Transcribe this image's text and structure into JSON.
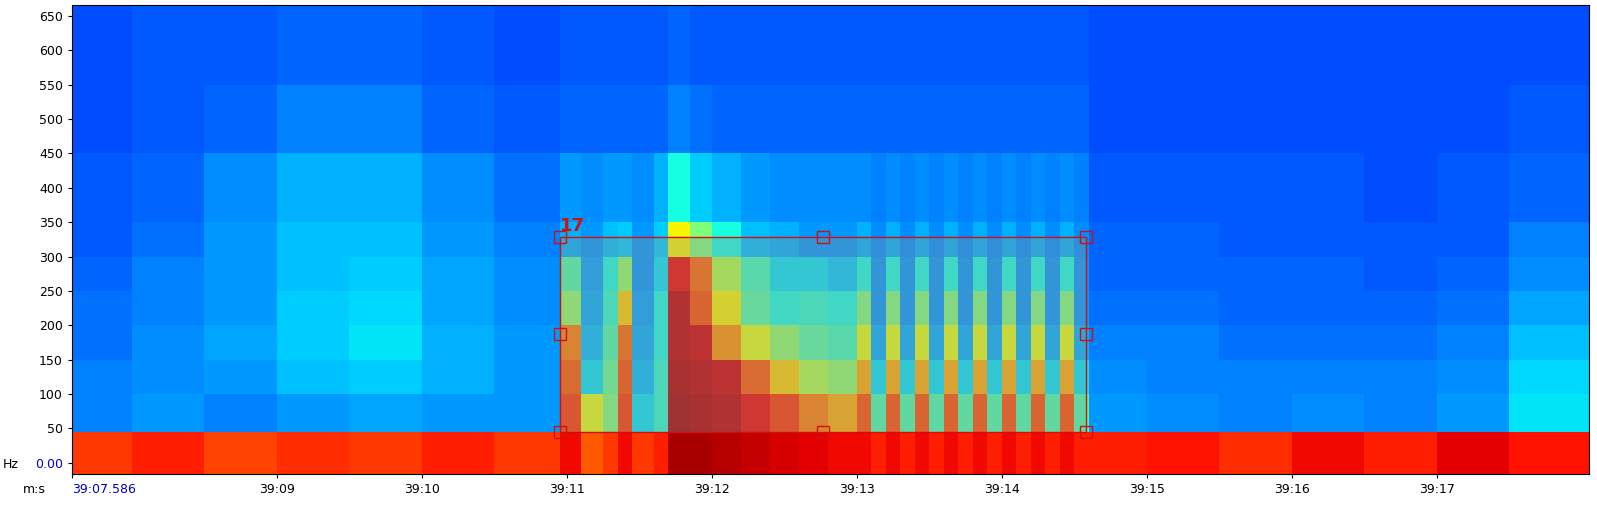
{
  "chart_data": {
    "type": "heatmap",
    "x_label": "m:s",
    "y_label": "Hz",
    "xlim": [
      7.586,
      18.05
    ],
    "ylim": [
      -16,
      666
    ],
    "xticks": [
      {
        "value": 7.586,
        "label": "39:07.586"
      },
      {
        "value": 9,
        "label": "39:09"
      },
      {
        "value": 10,
        "label": "39:10"
      },
      {
        "value": 11,
        "label": "39:11"
      },
      {
        "value": 12,
        "label": "39:12"
      },
      {
        "value": 13,
        "label": "39:13"
      },
      {
        "value": 14,
        "label": "39:14"
      },
      {
        "value": 15,
        "label": "39:15"
      },
      {
        "value": 16,
        "label": "39:16"
      },
      {
        "value": 17,
        "label": "39:17"
      }
    ],
    "yticks": [
      {
        "value": 0,
        "label": "0.00"
      },
      50,
      100,
      150,
      200,
      250,
      300,
      350,
      400,
      450,
      500,
      550,
      600,
      650
    ],
    "x_edges": [
      7.586,
      8.0,
      8.5,
      9.0,
      9.5,
      10.0,
      10.5,
      10.95,
      11.1,
      11.25,
      11.35,
      11.45,
      11.6,
      11.7,
      11.85,
      12.0,
      12.2,
      12.4,
      12.6,
      12.8,
      13.0,
      13.1,
      13.2,
      13.3,
      13.4,
      13.5,
      13.6,
      13.7,
      13.8,
      13.9,
      14.0,
      14.1,
      14.2,
      14.3,
      14.4,
      14.5,
      14.6,
      15.0,
      15.5,
      16.0,
      16.5,
      17.0,
      17.5,
      18.05
    ],
    "y_edges": [
      -16,
      45,
      100,
      150,
      200,
      250,
      300,
      350,
      450,
      550,
      666
    ],
    "zlim": [
      20,
      100
    ],
    "cells": [
      [
        88,
        90,
        87,
        89,
        88,
        90,
        88,
        92,
        85,
        88,
        92,
        88,
        90,
        97,
        97,
        96,
        95,
        94,
        93,
        92,
        92,
        90,
        92,
        90,
        92,
        90,
        92,
        90,
        92,
        90,
        92,
        90,
        92,
        90,
        92,
        90,
        90,
        91,
        89,
        92,
        90,
        93,
        91
      ],
      [
        40,
        42,
        40,
        42,
        43,
        42,
        42,
        88,
        70,
        60,
        88,
        48,
        52,
        97,
        96,
        95,
        92,
        88,
        82,
        78,
        86,
        55,
        86,
        55,
        86,
        55,
        86,
        55,
        86,
        55,
        86,
        55,
        86,
        55,
        86,
        55,
        42,
        41,
        40,
        41,
        40,
        42,
        48
      ],
      [
        40,
        41,
        42,
        45,
        46,
        44,
        42,
        85,
        48,
        58,
        86,
        45,
        52,
        96,
        95,
        94,
        85,
        75,
        65,
        62,
        78,
        48,
        78,
        48,
        78,
        48,
        78,
        48,
        78,
        48,
        78,
        48,
        78,
        48,
        78,
        48,
        41,
        40,
        40,
        40,
        40,
        41,
        47
      ],
      [
        39,
        41,
        43,
        46,
        48,
        44,
        42,
        82,
        45,
        55,
        84,
        44,
        50,
        95,
        94,
        80,
        70,
        62,
        56,
        54,
        70,
        44,
        70,
        44,
        70,
        44,
        70,
        44,
        70,
        44,
        70,
        44,
        70,
        44,
        70,
        44,
        40,
        40,
        39,
        39,
        39,
        40,
        45
      ],
      [
        39,
        40,
        42,
        46,
        47,
        43,
        41,
        62,
        44,
        52,
        75,
        43,
        50,
        95,
        86,
        72,
        56,
        50,
        52,
        50,
        60,
        42,
        60,
        42,
        60,
        42,
        60,
        42,
        60,
        42,
        60,
        42,
        60,
        42,
        60,
        42,
        39,
        39,
        38,
        38,
        38,
        39,
        43
      ],
      [
        38,
        40,
        42,
        45,
        46,
        43,
        41,
        55,
        43,
        50,
        62,
        42,
        48,
        92,
        84,
        65,
        54,
        48,
        48,
        46,
        50,
        42,
        50,
        42,
        50,
        42,
        50,
        42,
        50,
        42,
        50,
        42,
        50,
        42,
        50,
        42,
        38,
        38,
        38,
        38,
        37,
        38,
        41
      ],
      [
        37,
        39,
        42,
        45,
        45,
        42,
        40,
        44,
        42,
        45,
        46,
        42,
        46,
        72,
        60,
        50,
        45,
        44,
        42,
        42,
        44,
        41,
        44,
        41,
        44,
        41,
        44,
        41,
        44,
        41,
        44,
        41,
        44,
        41,
        44,
        41,
        38,
        38,
        37,
        37,
        37,
        37,
        40
      ],
      [
        37,
        38,
        41,
        44,
        44,
        41,
        39,
        42,
        41,
        42,
        42,
        41,
        44,
        50,
        46,
        44,
        42,
        41,
        41,
        41,
        41,
        40,
        41,
        40,
        41,
        40,
        41,
        40,
        41,
        40,
        41,
        40,
        41,
        40,
        41,
        40,
        37,
        37,
        37,
        37,
        36,
        37,
        38
      ],
      [
        36,
        37,
        38,
        40,
        40,
        38,
        37,
        38,
        38,
        38,
        38,
        38,
        38,
        40,
        39,
        38,
        38,
        38,
        38,
        38,
        38,
        38,
        38,
        38,
        38,
        38,
        38,
        38,
        38,
        38,
        38,
        38,
        38,
        38,
        38,
        38,
        36,
        36,
        36,
        36,
        36,
        36,
        37
      ],
      [
        36,
        37,
        37,
        38,
        38,
        37,
        36,
        37,
        37,
        37,
        37,
        37,
        37,
        38,
        37,
        37,
        37,
        37,
        37,
        37,
        37,
        37,
        37,
        37,
        37,
        37,
        37,
        37,
        37,
        37,
        37,
        37,
        37,
        37,
        37,
        37,
        36,
        36,
        36,
        36,
        36,
        36,
        36
      ]
    ],
    "annotations": [
      {
        "text": "17",
        "x": [
          10.95,
          14.58
        ],
        "y": [
          45,
          328
        ]
      }
    ]
  }
}
